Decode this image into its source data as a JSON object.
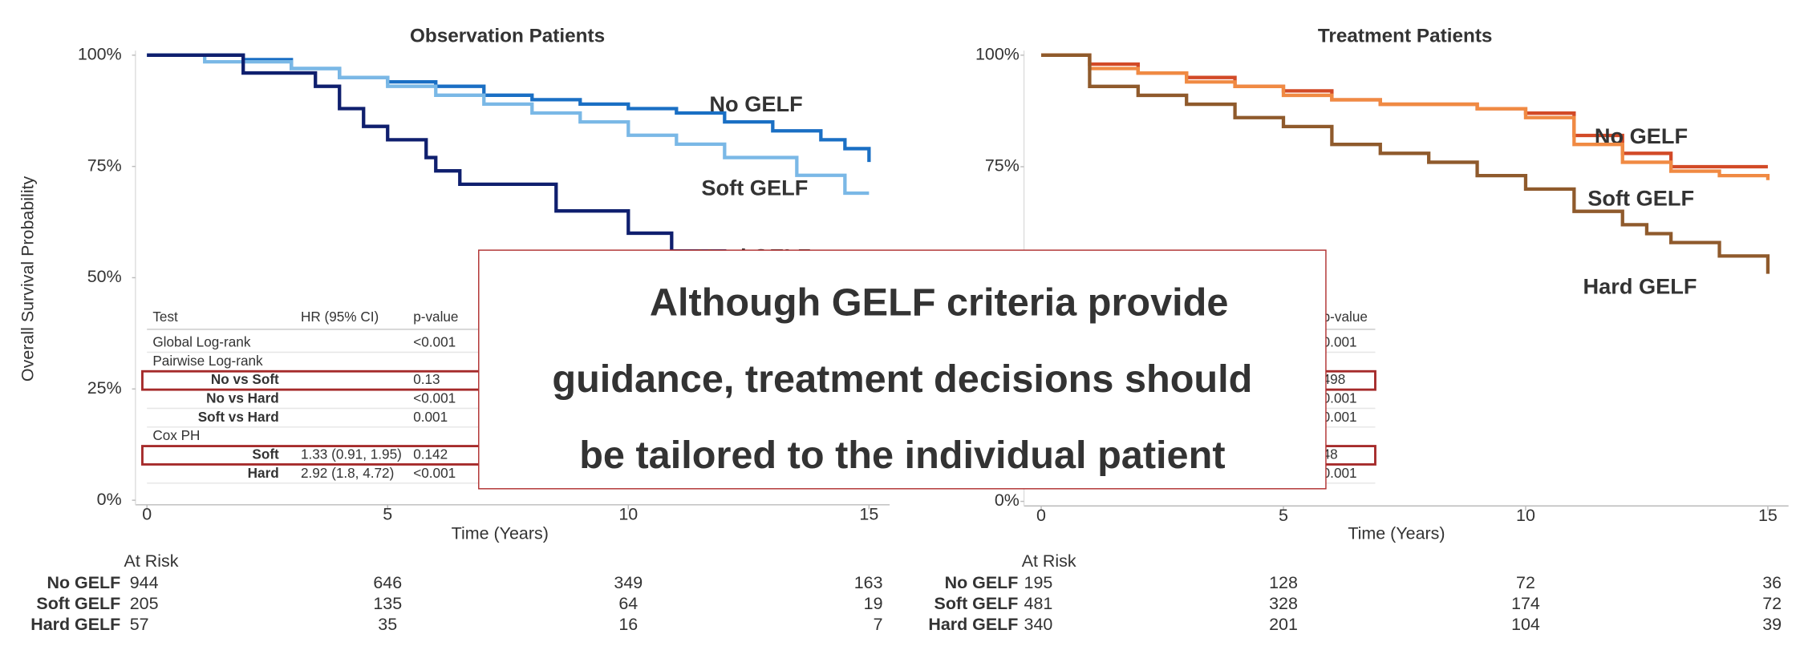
{
  "chart_data": [
    {
      "type": "line",
      "title": "Observation Patients",
      "xlabel": "Time (Years)",
      "ylabel": "Overall Survival Probability",
      "xlim": [
        0,
        15
      ],
      "xticks": [
        0,
        5,
        10,
        15
      ],
      "ylim": [
        0,
        100
      ],
      "yticks": [
        {
          "value": 0,
          "label": "0%"
        },
        {
          "value": 25,
          "label": "25%"
        },
        {
          "value": 50,
          "label": "50%"
        },
        {
          "value": 75,
          "label": "75%"
        },
        {
          "value": 100,
          "label": "100%"
        }
      ],
      "series": [
        {
          "name": "No GELF",
          "color": "#1a6fc4",
          "x": [
            0,
            2,
            3,
            4,
            5,
            6,
            7,
            8,
            9,
            10,
            11,
            12,
            13,
            14,
            14.5,
            15
          ],
          "values": [
            100,
            99,
            97,
            95,
            94,
            93,
            91,
            90,
            89,
            88,
            87,
            85,
            83,
            81,
            79,
            76
          ],
          "at_risk": [
            944,
            646,
            349,
            163
          ]
        },
        {
          "name": "Soft GELF",
          "color": "#7ab8e6",
          "x": [
            0,
            1.2,
            3,
            4,
            5,
            6,
            7,
            8,
            9,
            10,
            11,
            12,
            13.5,
            14.5,
            15
          ],
          "values": [
            100,
            98.5,
            97,
            95,
            93,
            91,
            89,
            87,
            85,
            82,
            80,
            77,
            73,
            69,
            69
          ],
          "at_risk": [
            205,
            135,
            64,
            19
          ]
        },
        {
          "name": "Hard GELF",
          "color": "#0f1f6e",
          "x": [
            0,
            2,
            3.5,
            4,
            4.5,
            5,
            5.8,
            6,
            6.5,
            8.5,
            10,
            10.9,
            12,
            13,
            14
          ],
          "values": [
            100,
            96,
            93,
            88,
            84,
            81,
            77,
            74,
            71,
            65,
            60,
            56,
            55,
            53,
            52
          ],
          "at_risk": [
            57,
            35,
            16,
            7
          ]
        }
      ],
      "at_risk_title": "At Risk",
      "stats_table": {
        "header": [
          "Test",
          "HR (95% CI)",
          "p-value"
        ],
        "rows": [
          [
            "Global Log-rank",
            null,
            "<0.001"
          ],
          [
            "Pairwise Log-rank",
            null,
            null
          ],
          [
            "No vs Soft",
            null,
            "0.13"
          ],
          [
            "No vs Hard",
            null,
            "<0.001"
          ],
          [
            "Soft vs Hard",
            null,
            "0.001"
          ],
          [
            "Cox PH",
            null,
            null
          ],
          [
            "Soft",
            "1.33 (0.91, 1.95)",
            "0.142"
          ],
          [
            "Hard",
            "2.92 (1.8, 4.72)",
            "<0.001"
          ]
        ]
      }
    },
    {
      "type": "line",
      "title": "Treatment Patients",
      "xlabel": "Time (Years)",
      "xlim": [
        0,
        15
      ],
      "xticks": [
        0,
        5,
        10,
        15
      ],
      "ylim": [
        0,
        100
      ],
      "yticks": [
        {
          "value": 0,
          "label": "0%"
        },
        {
          "value": 25,
          "label": "25%"
        },
        {
          "value": 50,
          "label": "50%"
        },
        {
          "value": 75,
          "label": "75%"
        },
        {
          "value": 100,
          "label": "100%"
        }
      ],
      "series": [
        {
          "name": "No GELF",
          "color": "#d24a27",
          "x": [
            0,
            1,
            2,
            3,
            4,
            5,
            6,
            7,
            8,
            9,
            10,
            11,
            12,
            13,
            15
          ],
          "values": [
            100,
            98,
            96,
            95,
            93,
            92,
            90,
            89,
            89,
            88,
            87,
            82,
            78,
            75,
            75
          ],
          "at_risk": [
            195,
            128,
            72,
            36
          ]
        },
        {
          "name": "Soft GELF",
          "color": "#f08a43",
          "x": [
            0,
            1,
            2,
            3,
            4,
            5,
            6,
            7,
            8,
            9,
            10,
            11,
            12,
            13,
            14,
            15
          ],
          "values": [
            100,
            97,
            96,
            94,
            93,
            91,
            90,
            89,
            89,
            88,
            86,
            80,
            76,
            74,
            73,
            72
          ],
          "at_risk": [
            481,
            328,
            174,
            72
          ]
        },
        {
          "name": "Hard GELF",
          "color": "#8f5a2c",
          "x": [
            0,
            1,
            2,
            3,
            4,
            5,
            6,
            7,
            8,
            9,
            10,
            11,
            12,
            12.5,
            13,
            14,
            15
          ],
          "values": [
            100,
            93,
            91,
            89,
            86,
            84,
            80,
            78,
            76,
            73,
            70,
            65,
            62,
            60,
            58,
            55,
            51
          ],
          "at_risk": [
            340,
            201,
            104,
            39
          ]
        }
      ],
      "at_risk_title": "At Risk",
      "stats_table": {
        "header": [
          "p-value"
        ],
        "rows": [
          [
            "0.001"
          ],
          [
            null
          ],
          [
            "498"
          ],
          [
            "0.001"
          ],
          [
            "0.001"
          ],
          [
            null
          ],
          [
            "48"
          ],
          [
            "0.001"
          ]
        ]
      }
    }
  ],
  "callout": {
    "lines": [
      "Although GELF criteria provide",
      "guidance, treatment decisions should",
      "be tailored to the individual patient"
    ]
  }
}
